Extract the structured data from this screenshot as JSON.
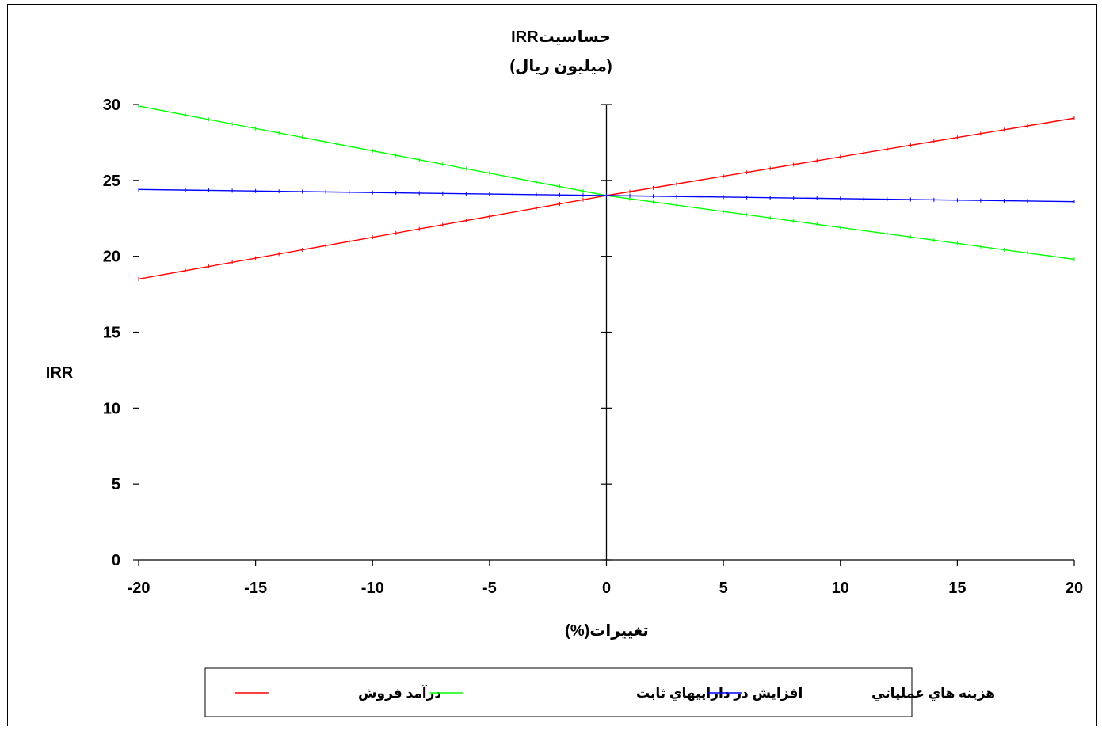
{
  "chart_data": {
    "type": "line",
    "title": "حساسیتIRR",
    "subtitle": "(میلیون ریال)",
    "xlabel": "تغييرات(%)",
    "ylabel": "IRR",
    "xlim": [
      -20,
      20
    ],
    "ylim": [
      0,
      30
    ],
    "x_ticks": [
      "-20",
      "-15",
      "-10",
      "-5",
      "0",
      "5",
      "10",
      "15",
      "20"
    ],
    "y_ticks": [
      "0",
      "5",
      "10",
      "15",
      "20",
      "25",
      "30"
    ],
    "grid": false,
    "legend_position": "bottom",
    "series": [
      {
        "name": "درآمد فروش",
        "color": "#ff0000",
        "x": [
          -20,
          0,
          20
        ],
        "y": [
          18.5,
          24.0,
          29.1
        ]
      },
      {
        "name": "افزايش در داراييهاي ثابت",
        "color": "#00ff00",
        "x": [
          -20,
          0,
          20
        ],
        "y": [
          29.9,
          24.0,
          19.8
        ]
      },
      {
        "name": "هزينه هاي عملياتي",
        "color": "#0000ff",
        "x": [
          -20,
          0,
          20
        ],
        "y": [
          24.4,
          24.0,
          23.6
        ]
      }
    ]
  }
}
